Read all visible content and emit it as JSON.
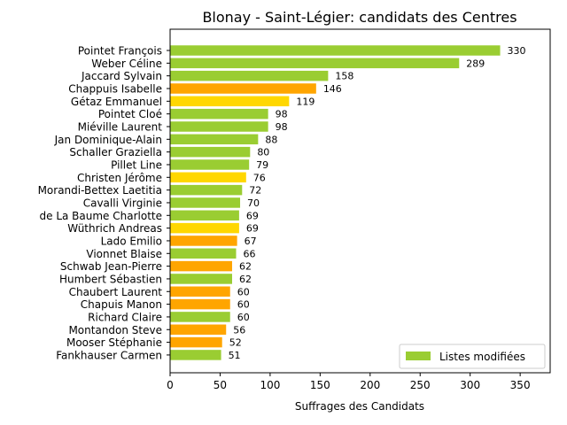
{
  "chart_data": {
    "type": "bar",
    "orientation": "horizontal",
    "title": "Blonay - Saint-Légier: candidats des Centres",
    "xlabel": "Suffrages des Candidats",
    "ylabel": "",
    "xlim": [
      0,
      380
    ],
    "xticks": [
      0,
      50,
      100,
      150,
      200,
      250,
      300,
      350
    ],
    "grid": false,
    "legend": {
      "position": "lower-right",
      "entries": [
        {
          "label": "Listes modifiées",
          "color": "#9acd32"
        }
      ]
    },
    "colors": {
      "green": "#9acd32",
      "orange": "#ffa500",
      "yellow": "#ffd700"
    },
    "categories": [
      "Pointet François",
      "Weber Céline",
      "Jaccard Sylvain",
      "Chappuis Isabelle",
      "Gétaz Emmanuel",
      "Pointet Cloé",
      "Miéville Laurent",
      "Jan Dominique-Alain",
      "Schaller Graziella",
      "Pillet Line",
      "Christen Jérôme",
      "Morandi-Bettex Laetitia",
      "Cavalli Virginie",
      "de La Baume Charlotte",
      "Wüthrich Andreas",
      "Lado Emilio",
      "Vionnet Blaise",
      "Schwab Jean-Pierre",
      "Humbert Sébastien",
      "Chaubert Laurent",
      "Chapuis Manon",
      "Richard Claire",
      "Montandon Steve",
      "Mooser Stéphanie",
      "Fankhauser Carmen"
    ],
    "values": [
      330,
      289,
      158,
      146,
      119,
      98,
      98,
      88,
      80,
      79,
      76,
      72,
      70,
      69,
      69,
      67,
      66,
      62,
      62,
      60,
      60,
      60,
      56,
      52,
      51
    ],
    "value_labels": [
      "330",
      "289",
      "158",
      "146",
      "119",
      "98",
      "98",
      "88",
      "80",
      "79",
      "76",
      "72",
      "70",
      "69",
      "69",
      "67",
      "66",
      "62",
      "62",
      "60",
      "60",
      "60",
      "56",
      "52",
      "51"
    ],
    "bar_colors": [
      "#9acd32",
      "#9acd32",
      "#9acd32",
      "#ffa500",
      "#ffd700",
      "#9acd32",
      "#9acd32",
      "#9acd32",
      "#9acd32",
      "#9acd32",
      "#ffd700",
      "#9acd32",
      "#9acd32",
      "#9acd32",
      "#ffd700",
      "#ffa500",
      "#9acd32",
      "#ffa500",
      "#9acd32",
      "#ffa500",
      "#ffa500",
      "#9acd32",
      "#ffa500",
      "#ffa500",
      "#9acd32"
    ]
  }
}
